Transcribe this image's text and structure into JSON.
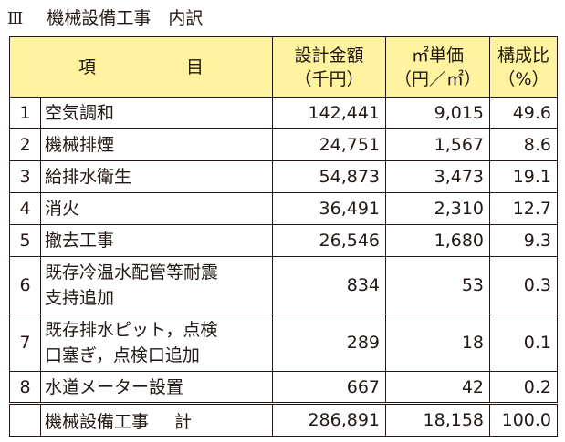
{
  "section": {
    "number": "Ⅲ",
    "title": "機械設備工事　内訳"
  },
  "table": {
    "headers": {
      "item": "項　目",
      "cost_line1": "設計金額",
      "cost_line2": "（千円）",
      "unit_line1": "㎡単価",
      "unit_line2": "（円／㎡）",
      "ratio_line1": "構成比",
      "ratio_line2": "（%）"
    },
    "rows": [
      {
        "no": "1",
        "name1": "空気調和",
        "name2": "",
        "cost": "142,441",
        "unit": "9,015",
        "ratio": "49.6"
      },
      {
        "no": "2",
        "name1": "機械排煙",
        "name2": "",
        "cost": "24,751",
        "unit": "1,567",
        "ratio": "8.6"
      },
      {
        "no": "3",
        "name1": "給排水衛生",
        "name2": "",
        "cost": "54,873",
        "unit": "3,473",
        "ratio": "19.1"
      },
      {
        "no": "4",
        "name1": "消火",
        "name2": "",
        "cost": "36,491",
        "unit": "2,310",
        "ratio": "12.7"
      },
      {
        "no": "5",
        "name1": "撤去工事",
        "name2": "",
        "cost": "26,546",
        "unit": "1,680",
        "ratio": "9.3"
      },
      {
        "no": "6",
        "name1": "既存冷温水配管等耐震",
        "name2": "支持追加",
        "cost": "834",
        "unit": "53",
        "ratio": "0.3"
      },
      {
        "no": "7",
        "name1": "既存排水ピット，点検",
        "name2": "口塞ぎ，点検口追加",
        "cost": "289",
        "unit": "18",
        "ratio": "0.1"
      },
      {
        "no": "8",
        "name1": "水道メーター設置",
        "name2": "",
        "cost": "667",
        "unit": "42",
        "ratio": "0.2"
      }
    ],
    "total": {
      "label": "機械設備工事",
      "suffix": "計",
      "cost": "286,891",
      "unit": "18,158",
      "ratio": "100.0"
    }
  }
}
